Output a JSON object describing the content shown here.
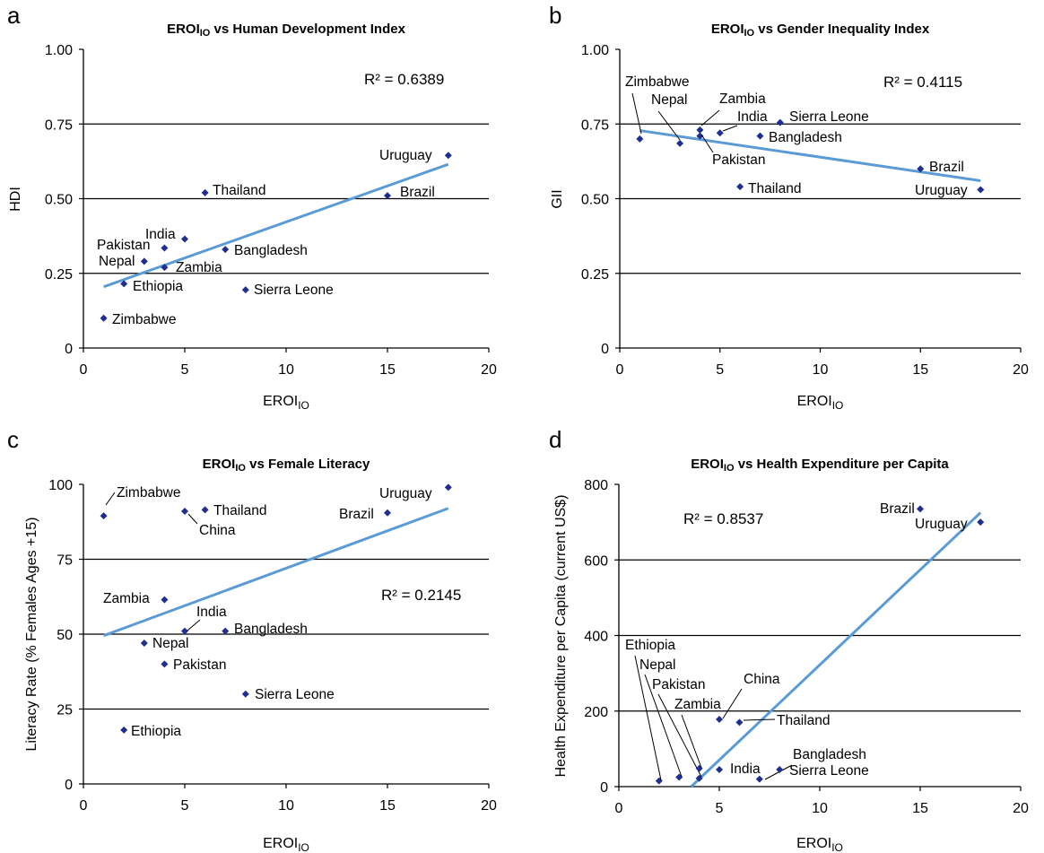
{
  "chart_data": [
    {
      "panel_letter": "a",
      "type": "scatter",
      "title": "EROI",
      "title_sub": "IO",
      "title_suffix": " vs Human Development Index",
      "xlabel": "EROI",
      "xlabel_sub": "IO",
      "ylabel": "HDI",
      "xlim": [
        0,
        20
      ],
      "ylim": [
        0,
        1
      ],
      "xticks": [
        0,
        5,
        10,
        15,
        20
      ],
      "xtick_labels": [
        "0",
        "5",
        "10",
        "15",
        "20"
      ],
      "yticks": [
        0,
        0.25,
        0.5,
        0.75,
        1.0
      ],
      "ytick_labels": [
        "0",
        "0.25",
        "0.50",
        "0.75",
        "1.00"
      ],
      "gridlines_y": [
        0.25,
        0.5,
        0.75
      ],
      "r2": "R² = 0.6389",
      "trendline": [
        [
          1,
          0.205
        ],
        [
          18,
          0.615
        ]
      ],
      "points": [
        {
          "label": "Zimbabwe",
          "x": 1,
          "y": 0.1
        },
        {
          "label": "Ethiopia",
          "x": 2,
          "y": 0.215
        },
        {
          "label": "Nepal",
          "x": 3,
          "y": 0.29
        },
        {
          "label": "Pakistan",
          "x": 4,
          "y": 0.335
        },
        {
          "label": "Zambia",
          "x": 4,
          "y": 0.27
        },
        {
          "label": "India",
          "x": 5,
          "y": 0.365
        },
        {
          "label": "Thailand",
          "x": 6,
          "y": 0.52
        },
        {
          "label": "Bangladesh",
          "x": 7,
          "y": 0.33
        },
        {
          "label": "Sierra Leone",
          "x": 8,
          "y": 0.195
        },
        {
          "label": "Brazil",
          "x": 15,
          "y": 0.51
        },
        {
          "label": "Uruguay",
          "x": 18,
          "y": 0.645
        }
      ]
    },
    {
      "panel_letter": "b",
      "type": "scatter",
      "title": "EROI",
      "title_sub": "IO",
      "title_suffix": " vs Gender Inequality Index",
      "xlabel": "EROI",
      "xlabel_sub": "IO",
      "ylabel": "GII",
      "xlim": [
        0,
        20
      ],
      "ylim": [
        0,
        1
      ],
      "xticks": [
        0,
        5,
        10,
        15,
        20
      ],
      "xtick_labels": [
        "0",
        "5",
        "10",
        "15",
        "20"
      ],
      "yticks": [
        0,
        0.25,
        0.5,
        0.75,
        1.0
      ],
      "ytick_labels": [
        "0",
        "0.25",
        "0.50",
        "0.75",
        "1.00"
      ],
      "gridlines_y": [
        0.25,
        0.5,
        0.75
      ],
      "r2": "R² = 0.4115",
      "trendline": [
        [
          1,
          0.728
        ],
        [
          18,
          0.56
        ]
      ],
      "points": [
        {
          "label": "Zimbabwe",
          "x": 1,
          "y": 0.7
        },
        {
          "label": "Nepal",
          "x": 3,
          "y": 0.685
        },
        {
          "label": "Zambia",
          "x": 4,
          "y": 0.73
        },
        {
          "label": "Pakistan",
          "x": 4,
          "y": 0.71
        },
        {
          "label": "India",
          "x": 5,
          "y": 0.72
        },
        {
          "label": "Thailand",
          "x": 6,
          "y": 0.54
        },
        {
          "label": "Bangladesh",
          "x": 7,
          "y": 0.71
        },
        {
          "label": "Sierra Leone",
          "x": 8,
          "y": 0.755
        },
        {
          "label": "Brazil",
          "x": 15,
          "y": 0.6
        },
        {
          "label": "Uruguay",
          "x": 18,
          "y": 0.53
        }
      ]
    },
    {
      "panel_letter": "c",
      "type": "scatter",
      "title": "EROI",
      "title_sub": "IO",
      "title_suffix": " vs Female Literacy",
      "xlabel": "EROI",
      "xlabel_sub": "IO",
      "ylabel": "Literacy Rate  (% Females Ages +15)",
      "xlim": [
        0,
        20
      ],
      "ylim": [
        0,
        100
      ],
      "xticks": [
        0,
        5,
        10,
        15,
        20
      ],
      "xtick_labels": [
        "0",
        "5",
        "10",
        "15",
        "20"
      ],
      "yticks": [
        0,
        25,
        50,
        75,
        100
      ],
      "ytick_labels": [
        "0",
        "25",
        "50",
        "75",
        "100"
      ],
      "gridlines_y": [
        25,
        50,
        75
      ],
      "r2": "R² = 0.2145",
      "trendline": [
        [
          1,
          49.5
        ],
        [
          18,
          92
        ]
      ],
      "points": [
        {
          "label": "Zimbabwe",
          "x": 1,
          "y": 89.5
        },
        {
          "label": "Ethiopia",
          "x": 2,
          "y": 18
        },
        {
          "label": "Nepal",
          "x": 3,
          "y": 47
        },
        {
          "label": "Zambia",
          "x": 4,
          "y": 61.5
        },
        {
          "label": "Pakistan",
          "x": 4,
          "y": 40
        },
        {
          "label": "China",
          "x": 5,
          "y": 91
        },
        {
          "label": "India",
          "x": 5,
          "y": 51
        },
        {
          "label": "Thailand",
          "x": 6,
          "y": 91.5
        },
        {
          "label": "Bangladesh",
          "x": 7,
          "y": 51
        },
        {
          "label": "Sierra Leone",
          "x": 8,
          "y": 30
        },
        {
          "label": "Brazil",
          "x": 15,
          "y": 90.5
        },
        {
          "label": "Uruguay",
          "x": 18,
          "y": 99
        }
      ]
    },
    {
      "panel_letter": "d",
      "type": "scatter",
      "title": "EROI",
      "title_sub": "IO",
      "title_suffix": " vs Health Expenditure per Capita",
      "xlabel": "EROI",
      "xlabel_sub": "IO",
      "ylabel": "Health Expenditure per Capita (current US$)",
      "xlim": [
        0,
        20
      ],
      "ylim": [
        0,
        800
      ],
      "xticks": [
        0,
        5,
        10,
        15,
        20
      ],
      "xtick_labels": [
        "0",
        "5",
        "10",
        "15",
        "20"
      ],
      "yticks": [
        0,
        200,
        400,
        600,
        800
      ],
      "ytick_labels": [
        "0",
        "200",
        "400",
        "600",
        "800"
      ],
      "gridlines_y": [
        200,
        400,
        600
      ],
      "r2": "R² = 0.8537",
      "trendline": [
        [
          3.5,
          -5
        ],
        [
          18,
          725
        ]
      ],
      "points": [
        {
          "label": "Ethiopia",
          "x": 2,
          "y": 15
        },
        {
          "label": "Nepal",
          "x": 3,
          "y": 25
        },
        {
          "label": "Pakistan",
          "x": 4,
          "y": 22
        },
        {
          "label": "Zambia",
          "x": 4,
          "y": 48
        },
        {
          "label": "China",
          "x": 5,
          "y": 178
        },
        {
          "label": "India",
          "x": 5,
          "y": 45
        },
        {
          "label": "Thailand",
          "x": 6,
          "y": 170
        },
        {
          "label": "Bangladesh",
          "x": 7,
          "y": 20
        },
        {
          "label": "Sierra Leone",
          "x": 8,
          "y": 45
        },
        {
          "label": "Brazil",
          "x": 15,
          "y": 735
        },
        {
          "label": "Uruguay",
          "x": 18,
          "y": 700
        }
      ]
    }
  ],
  "colors": {
    "marker": "#1f2f8f",
    "trendline": "#5b9bd5",
    "grid": "#000000",
    "text": "#000000"
  }
}
